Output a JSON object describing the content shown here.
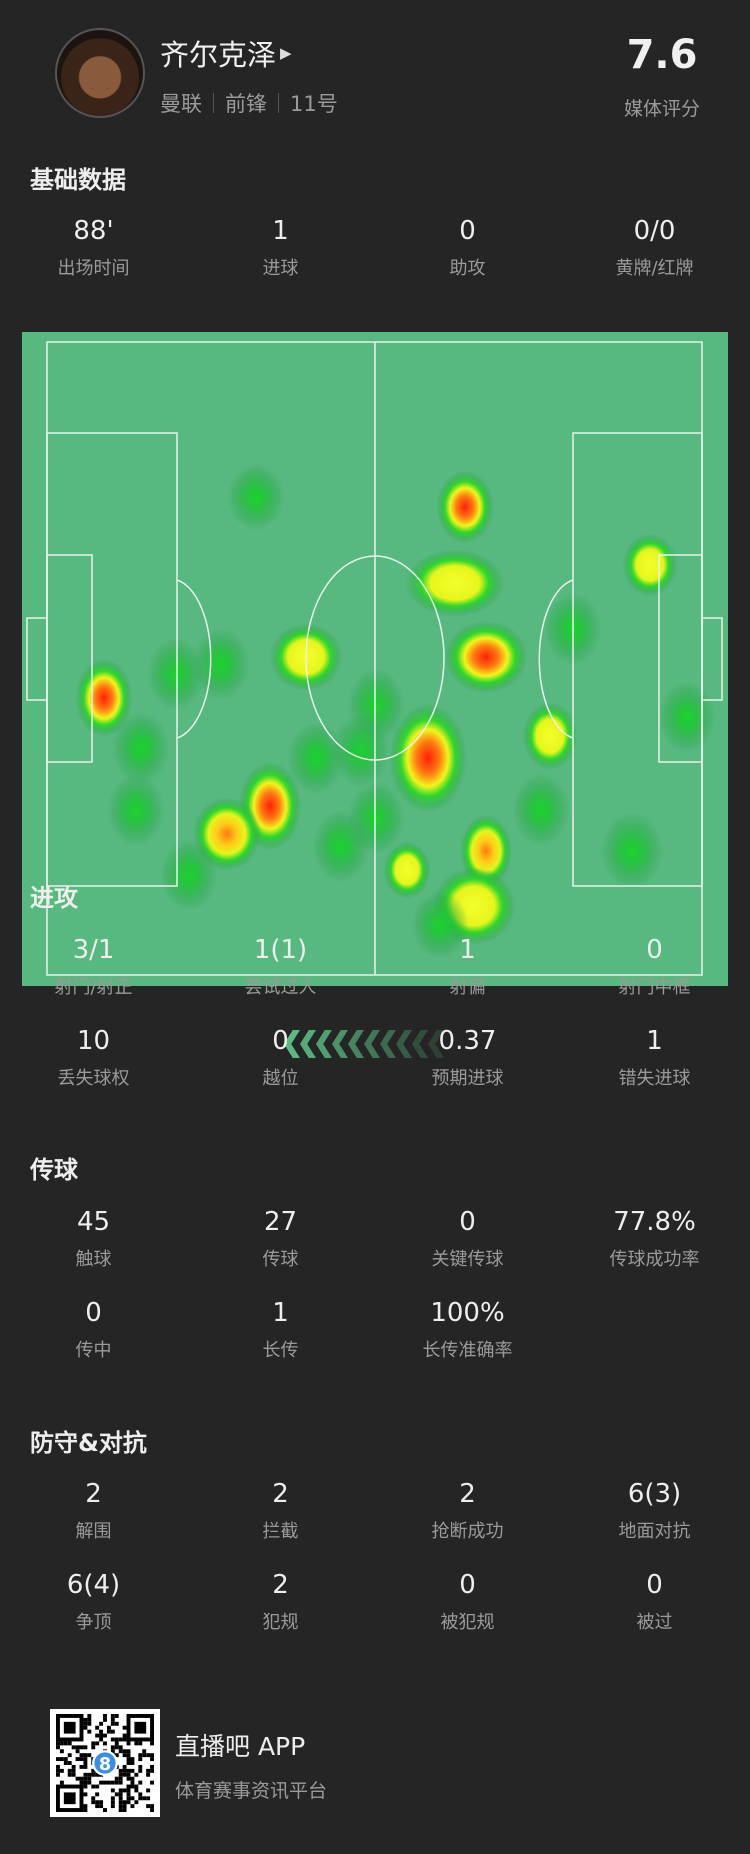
{
  "player": {
    "name": "齐尔克泽",
    "team": "曼联",
    "position": "前锋",
    "number": "11号",
    "rating": "7.6",
    "rating_label": "媒体评分"
  },
  "basic": {
    "title": "基础数据",
    "stats": [
      {
        "value": "88'",
        "label": "出场时间"
      },
      {
        "value": "1",
        "label": "进球"
      },
      {
        "value": "0",
        "label": "助攻"
      },
      {
        "value": "0/0",
        "label": "黄牌/红牌"
      }
    ]
  },
  "heatmap": {
    "pitch_color": "#57b97f",
    "direction": "left"
  },
  "attack": {
    "title": "进攻",
    "stats": [
      {
        "value": "3/1",
        "label": "射门/射正"
      },
      {
        "value": "1(1)",
        "label": "尝试过人"
      },
      {
        "value": "1",
        "label": "射偏"
      },
      {
        "value": "0",
        "label": "射门中框"
      },
      {
        "value": "10",
        "label": "丢失球权"
      },
      {
        "value": "0",
        "label": "越位"
      },
      {
        "value": "0.37",
        "label": "预期进球"
      },
      {
        "value": "1",
        "label": "错失进球"
      }
    ]
  },
  "passing": {
    "title": "传球",
    "stats": [
      {
        "value": "45",
        "label": "触球"
      },
      {
        "value": "27",
        "label": "传球"
      },
      {
        "value": "0",
        "label": "关键传球"
      },
      {
        "value": "77.8%",
        "label": "传球成功率"
      },
      {
        "value": "0",
        "label": "传中"
      },
      {
        "value": "1",
        "label": "长传"
      },
      {
        "value": "100%",
        "label": "长传准确率"
      }
    ]
  },
  "defense": {
    "title": "防守&对抗",
    "stats": [
      {
        "value": "2",
        "label": "解围"
      },
      {
        "value": "2",
        "label": "拦截"
      },
      {
        "value": "2",
        "label": "抢断成功"
      },
      {
        "value": "6(3)",
        "label": "地面对抗"
      },
      {
        "value": "6(4)",
        "label": "争顶"
      },
      {
        "value": "2",
        "label": "犯规"
      },
      {
        "value": "0",
        "label": "被犯规"
      },
      {
        "value": "0",
        "label": "被过"
      }
    ]
  },
  "footer": {
    "app_name": "直播吧 APP",
    "tagline": "体育赛事资讯平台",
    "qr_badge": "8"
  }
}
